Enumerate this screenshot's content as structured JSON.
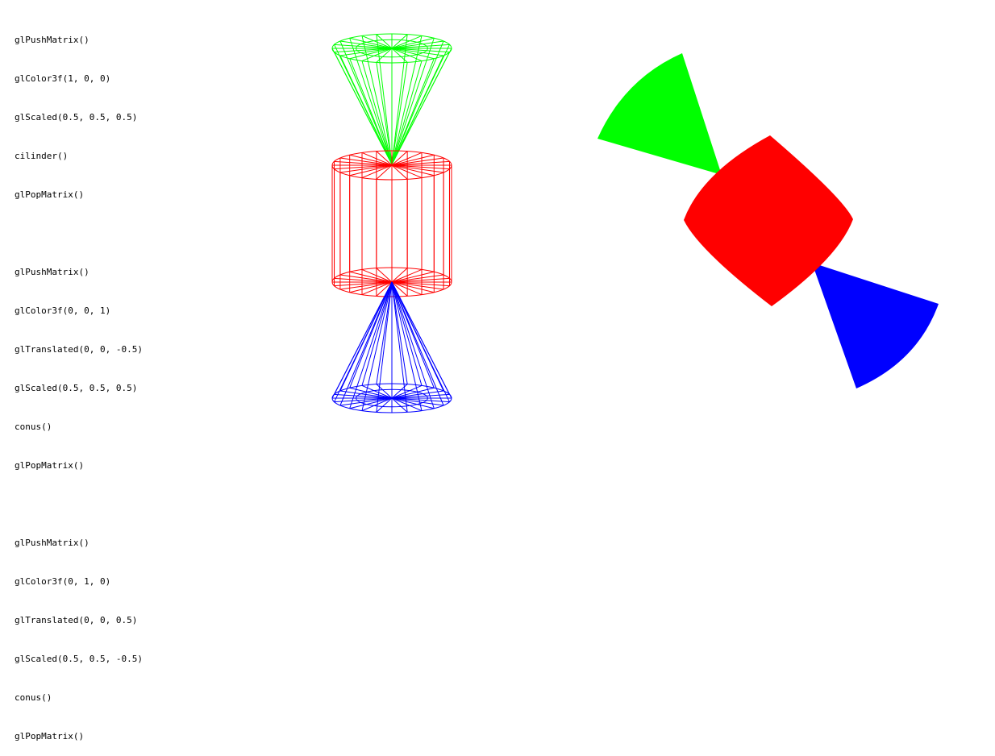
{
  "code_blocks": [
    [
      "glPushMatrix()",
      "glColor3f(1, 0, 0)",
      "glScaled(0.5, 0.5, 0.5)",
      "cilinder()",
      "glPopMatrix()"
    ],
    [
      "glPushMatrix()",
      "glColor3f(0, 0, 1)",
      "glTranslated(0, 0, -0.5)",
      "glScaled(0.5, 0.5, 0.5)",
      "conus()",
      "glPopMatrix()"
    ],
    [
      "glPushMatrix()",
      "glColor3f(0, 1, 0)",
      "glTranslated(0, 0, 0.5)",
      "glScaled(0.5, 0.5, -0.5)",
      "conus()",
      "glPopMatrix()"
    ]
  ],
  "colors": {
    "cylinder": "#ff0000",
    "cone_blue": "#0000ff",
    "cone_green": "#00ff00",
    "background": "#ffffff"
  },
  "wireframe": {
    "segments": 24
  },
  "views": [
    "wireframe",
    "solid-rotated"
  ]
}
